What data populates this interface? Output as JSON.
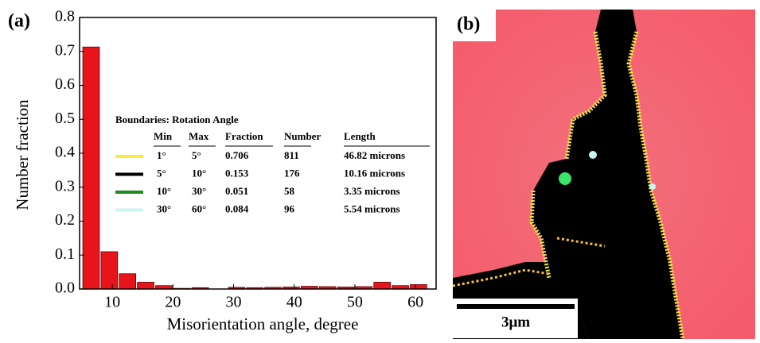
{
  "chart_data": {
    "type": "histogram",
    "panel_label": "(a)",
    "y_label": "Number fraction",
    "x_label": "Misorientation angle, degree",
    "bins": [
      5,
      8,
      11,
      14,
      17,
      20,
      23,
      26,
      29,
      32,
      35,
      38,
      41,
      44,
      47,
      50,
      53,
      56,
      59,
      62
    ],
    "values": [
      0.713,
      0.11,
      0.045,
      0.02,
      0.01,
      0.002,
      0.004,
      0,
      0.005,
      0.004,
      0.005,
      0.006,
      0.008,
      0.007,
      0.006,
      0.007,
      0.02,
      0.01,
      0.013
    ],
    "color": "#e8141b",
    "xlim": [
      4.6,
      63.4
    ],
    "xticks": [
      10,
      20,
      30,
      40,
      50,
      60
    ],
    "ylim": [
      0,
      0.8
    ],
    "yticks": [
      {
        "value": 0,
        "label": "0.0"
      },
      0.1,
      0.2,
      0.3,
      0.4,
      0.5,
      0.6,
      0.7,
      0.8
    ],
    "legend_table": {
      "title": "Boundaries: Rotation Angle",
      "headers": [
        "Min",
        "Max",
        "Fraction",
        "Number",
        "Length"
      ],
      "rows": [
        {
          "color": "#f4f03a",
          "cells": [
            "1°",
            "5°",
            0.706,
            811,
            "46.82 microns"
          ]
        },
        {
          "color": "#000000",
          "cells": [
            "5°",
            "10°",
            0.153,
            176,
            "10.16 microns"
          ]
        },
        {
          "color": "#1f8a1f",
          "cells": [
            "10°",
            "30°",
            0.051,
            58,
            "3.35 microns"
          ]
        },
        {
          "color": "#c8f4f4",
          "cells": [
            "30°",
            "60°",
            0.084,
            96,
            "5.54 microns"
          ]
        }
      ]
    }
  },
  "map_panel": {
    "panel_label": "(b)",
    "scale_bar": "3μm"
  }
}
